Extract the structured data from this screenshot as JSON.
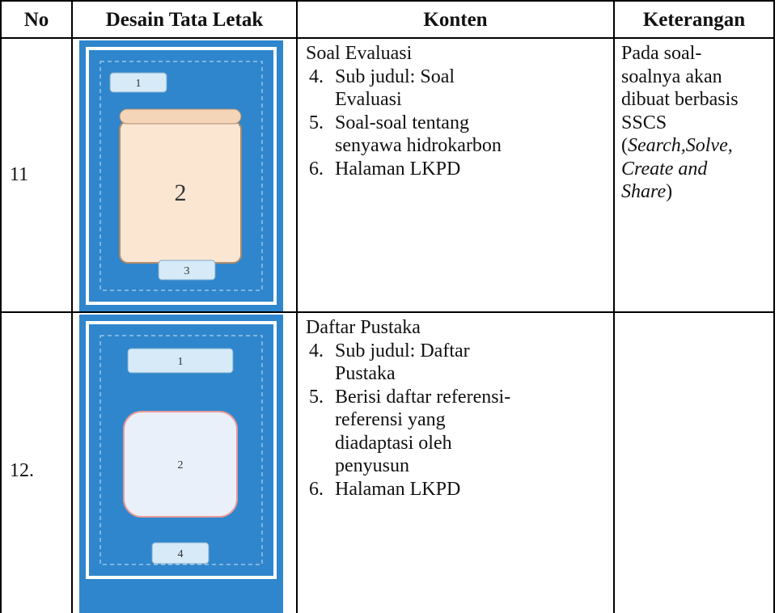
{
  "table": {
    "header": [
      "No",
      "Desain Tata Letak",
      "Konten",
      "Keterangan"
    ],
    "rows": [
      {
        "no": "11",
        "layout_labels": [
          "1",
          "2",
          "3"
        ],
        "content_title": "Soal Evaluasi",
        "items": [
          {
            "number": "4.",
            "lines": [
              "Sub judul: Soal",
              "Evaluasi"
            ]
          },
          {
            "number": "5.",
            "lines": [
              "Soal-soal tentang",
              "senyawa hidrokarbon"
            ]
          },
          {
            "number": "6.",
            "lines": [
              "Halaman LKPD"
            ]
          }
        ],
        "note_lines": [
          [
            {
              "text": "Pada soal-",
              "italic": false
            }
          ],
          [
            {
              "text": "soalnya akan",
              "italic": false
            }
          ],
          [
            {
              "text": "dibuat berbasis",
              "italic": false
            }
          ],
          [
            {
              "text": "SSCS",
              "italic": false
            }
          ],
          [
            {
              "text": "(",
              "italic": false
            },
            {
              "text": "Search,Solve,",
              "italic": true
            }
          ],
          [
            {
              "text": "Create and",
              "italic": true
            }
          ],
          [
            {
              "text": "Share",
              "italic": true
            },
            {
              "text": ")",
              "italic": false
            }
          ]
        ]
      },
      {
        "no": "12.",
        "layout_labels": [
          "1",
          "2",
          "4"
        ],
        "content_title": "Daftar Pustaka",
        "items": [
          {
            "number": "4.",
            "lines": [
              "Sub judul: Daftar",
              "Pustaka"
            ]
          },
          {
            "number": "5.",
            "lines": [
              "Berisi daftar referensi-",
              "referensi yang",
              "diadaptasi oleh",
              "penyusun"
            ]
          },
          {
            "number": "6.",
            "lines": [
              "Halaman LKPD"
            ]
          }
        ],
        "note_lines": []
      }
    ]
  }
}
